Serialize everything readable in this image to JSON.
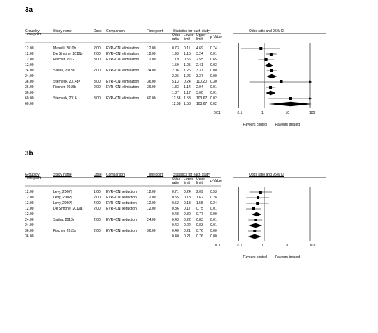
{
  "panels": [
    {
      "label": "3a",
      "headers": {
        "group": "Group by",
        "group_sub": "Time point",
        "study": "Study name",
        "dose": "Dose",
        "comparison": "Comparison",
        "time": "Time point",
        "stats": "Statistics for each study",
        "or": "Odds ratio",
        "lower": "Lower limit",
        "upper": "Upper limit",
        "p": "p-Value",
        "plot": "Odds ratio and 95% CI"
      },
      "rows": [
        [
          "12.00",
          "Maselli, 2010b",
          "2.00",
          "EVR+CNI elimination",
          "12.00",
          "0.73",
          "0.11",
          "4.69",
          "0.74"
        ],
        [
          "12.00",
          "De Simone, 2012b",
          "2.00",
          "EVR+CNI elimination",
          "12.00",
          "1.93",
          "1.15",
          "3.24",
          "0.01"
        ],
        [
          "12.00",
          "Fischer, 2012",
          "3.00",
          "EVR+CNI elimination",
          "12.00",
          "1.19",
          "0.56",
          "2.55",
          "0.65"
        ],
        [
          "12.00",
          null,
          null,
          null,
          null,
          "1.59",
          "1.05",
          "2.41",
          "0.03"
        ],
        [
          "24.00",
          "Saliba, 2013d",
          "2.00",
          "EVR+CNI elimination",
          "24.00",
          "2.06",
          "1.26",
          "3.37",
          "0.00"
        ],
        [
          "24.00",
          null,
          null,
          null,
          null,
          "2.06",
          "1.26",
          "3.37",
          "0.00"
        ],
        [
          "36.00",
          "Sterneck, 2014b§",
          "3.00",
          "EVR+CNI elimination",
          "36.00",
          "5.13",
          "0.24",
          "110.20",
          "0.30"
        ],
        [
          "36.00",
          "Fischer, 2015b",
          "2.00",
          "EVR+CNI elimination",
          "36.00",
          "1.83",
          "1.14",
          "2.94",
          "0.01"
        ],
        [
          "36.00",
          null,
          null,
          null,
          null,
          "1.87",
          "1.17",
          "3.00",
          "0.01"
        ],
        [
          "60.00",
          "Sterneck, 2016",
          "3.00",
          "EVR+CNI elimination",
          "60.00",
          "12.58",
          "1.53",
          "103.67",
          "0.02"
        ],
        [
          "60.00",
          null,
          null,
          null,
          null,
          "12.58",
          "1.53",
          "103.67",
          "0.02"
        ]
      ],
      "xticks": [
        0.01,
        0.1,
        1,
        10,
        100
      ],
      "log_scale": true,
      "favours_left": "Favours control",
      "favours_right": "Favours treated"
    },
    {
      "label": "3b",
      "headers": {
        "group": "Group by",
        "group_sub": "Time point",
        "study": "Study name",
        "dose": "Dose",
        "comparison": "Comparison",
        "time": "Time point",
        "stats": "Statistics for each study",
        "or": "Odds ratio",
        "lower": "Lower limit",
        "upper": "Upper limit",
        "p": "p-Value",
        "plot": "Odds ratio and 95% CI"
      },
      "rows": [
        [
          "12.00",
          "Levy, 2006¶",
          "1.00",
          "EVR+CNI reduction",
          "12.00",
          "0.71",
          "0.24",
          "2.09",
          "0.53"
        ],
        [
          "12.00",
          "Levy, 2006¶",
          "2.00",
          "EVR+CNI reduction",
          "12.00",
          "0.55",
          "0.18",
          "1.62",
          "0.28"
        ],
        [
          "12.00",
          "Levy, 2006¶",
          "4.00",
          "EVR+CNI reduction",
          "12.00",
          "0.52",
          "0.18",
          "1.55",
          "0.24"
        ],
        [
          "12.00",
          "De Simone, 2012a",
          "2.00",
          "EVR+CNI reduction",
          "12.00",
          "0.36",
          "0.17",
          "0.75",
          "0.01"
        ],
        [
          "12.00",
          null,
          null,
          null,
          null,
          "0.48",
          "0.30",
          "0.77",
          "0.00"
        ],
        [
          "24.00",
          "Saliba, 2013c",
          "2.00",
          "EVR+CNI reduction",
          "24.00",
          "0.43",
          "0.22",
          "0.83",
          "0.01"
        ],
        [
          "24.00",
          null,
          null,
          null,
          null,
          "0.43",
          "0.22",
          "0.83",
          "0.01"
        ],
        [
          "36.00",
          "Fischer, 2015a",
          "2.00",
          "EVR+CNI reduction",
          "36.00",
          "0.40",
          "0.21",
          "0.76",
          "0.00"
        ],
        [
          "36.00",
          null,
          null,
          null,
          null,
          "0.40",
          "0.21",
          "0.76",
          "0.00"
        ]
      ],
      "xticks": [
        0.01,
        0.1,
        1,
        10,
        100
      ],
      "log_scale": true,
      "favours_left": "Favours control",
      "favours_right": "Favours treated"
    }
  ]
}
